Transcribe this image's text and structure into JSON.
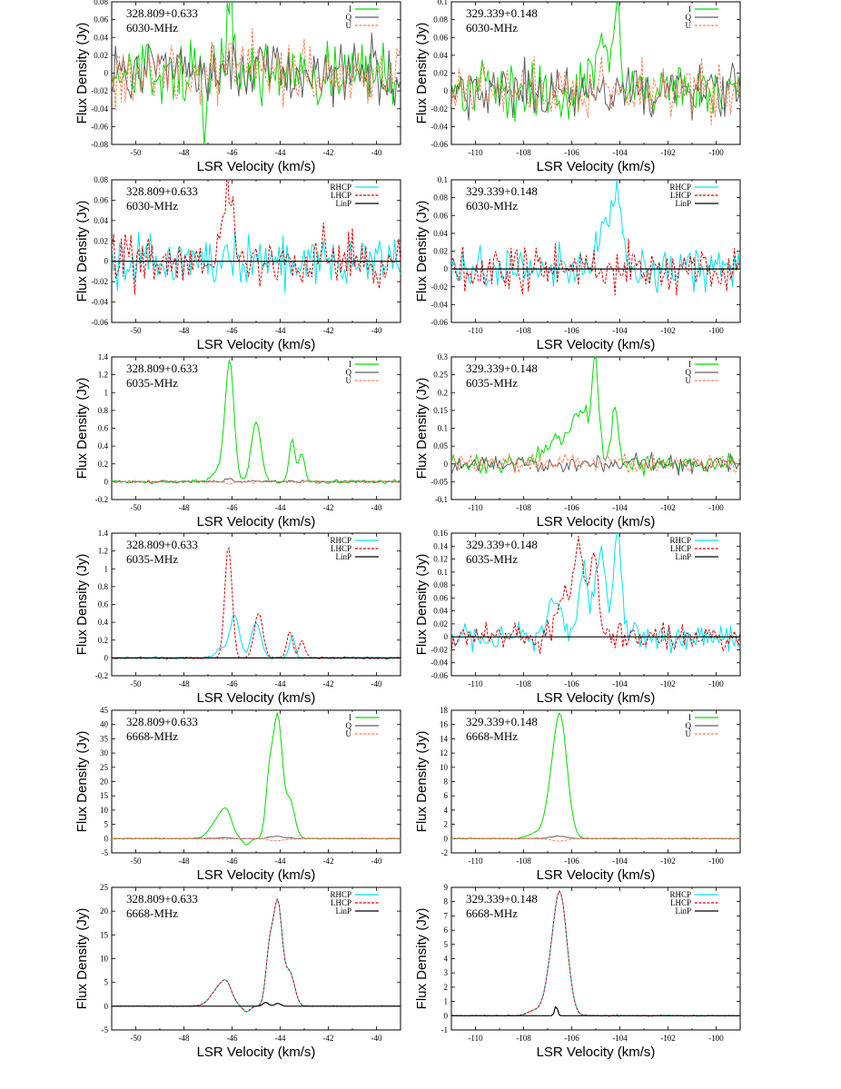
{
  "chart_data": [
    {
      "type": "line",
      "source": "328.809+0.633",
      "freq": "6030-MHz",
      "mode": "IQU",
      "xlim": [
        -51,
        -39
      ],
      "ylim": [
        -0.08,
        0.08
      ],
      "xticks": [
        -50,
        -48,
        -46,
        -44,
        -42,
        -40
      ],
      "yticks": [
        -0.08,
        -0.06,
        -0.04,
        -0.02,
        0,
        0.02,
        0.04,
        0.06,
        0.08
      ],
      "xlabel": "LSR Velocity (km/s)",
      "ylabel": "Flux Density (Jy)",
      "legend": [
        "I",
        "Q",
        "U"
      ],
      "legend_position": "top-right",
      "noise": 0.025,
      "peaks": {
        "I": [
          [
            -46.1,
            0.08,
            0.15
          ]
        ]
      },
      "dips": {
        "I": [
          [
            -47.1,
            -0.07,
            0.08
          ]
        ]
      }
    },
    {
      "type": "line",
      "source": "329.339+0.148",
      "freq": "6030-MHz",
      "mode": "IQU",
      "xlim": [
        -111,
        -99
      ],
      "ylim": [
        -0.06,
        0.1
      ],
      "xticks": [
        -110,
        -108,
        -106,
        -104,
        -102,
        -100
      ],
      "yticks": [
        -0.06,
        -0.04,
        -0.02,
        0,
        0.02,
        0.04,
        0.06,
        0.08,
        0.1
      ],
      "xlabel": "LSR Velocity (km/s)",
      "ylabel": "Flux Density (Jy)",
      "legend": [
        "I",
        "Q",
        "U"
      ],
      "legend_position": "top-right",
      "noise": 0.022,
      "peaks": {
        "I": [
          [
            -104.1,
            0.09,
            0.15
          ],
          [
            -104.7,
            0.06,
            0.25
          ]
        ]
      }
    },
    {
      "type": "line",
      "source": "328.809+0.633",
      "freq": "6030-MHz",
      "mode": "RL",
      "xlim": [
        -51,
        -39
      ],
      "ylim": [
        -0.06,
        0.08
      ],
      "xticks": [
        -50,
        -48,
        -46,
        -44,
        -42,
        -40
      ],
      "yticks": [
        -0.06,
        -0.04,
        -0.02,
        0,
        0.02,
        0.04,
        0.06,
        0.08
      ],
      "xlabel": "LSR Velocity (km/s)",
      "ylabel": "Flux Density (Jy)",
      "legend": [
        "RHCP",
        "LHCP",
        "LinP"
      ],
      "legend_position": "top-right",
      "noise": 0.018,
      "peaks": {
        "LHCP": [
          [
            -46.15,
            0.075,
            0.18
          ]
        ]
      }
    },
    {
      "type": "line",
      "source": "329.339+0.148",
      "freq": "6030-MHz",
      "mode": "RL",
      "xlim": [
        -111,
        -99
      ],
      "ylim": [
        -0.06,
        0.1
      ],
      "xticks": [
        -110,
        -108,
        -106,
        -104,
        -102,
        -100
      ],
      "yticks": [
        -0.06,
        -0.04,
        -0.02,
        0,
        0.02,
        0.04,
        0.06,
        0.08,
        0.1
      ],
      "xlabel": "LSR Velocity (km/s)",
      "ylabel": "Flux Density (Jy)",
      "legend": [
        "RHCP",
        "LHCP",
        "LinP"
      ],
      "legend_position": "top-right",
      "noise": 0.018,
      "peaks": {
        "RHCP": [
          [
            -104.15,
            0.088,
            0.2
          ],
          [
            -104.7,
            0.05,
            0.2
          ]
        ]
      }
    },
    {
      "type": "line",
      "source": "328.809+0.633",
      "freq": "6035-MHz",
      "mode": "IQU",
      "xlim": [
        -51,
        -39
      ],
      "ylim": [
        -0.2,
        1.4
      ],
      "xticks": [
        -50,
        -48,
        -46,
        -44,
        -42,
        -40
      ],
      "yticks": [
        -0.2,
        0,
        0.2,
        0.4,
        0.6,
        0.8,
        1,
        1.2,
        1.4
      ],
      "xlabel": "LSR Velocity (km/s)",
      "ylabel": "Flux Density (Jy)",
      "legend": [
        "I",
        "Q",
        "U"
      ],
      "legend_position": "top-right",
      "noise": 0.015,
      "peaks": {
        "I": [
          [
            -46.1,
            1.33,
            0.18
          ],
          [
            -45.0,
            0.67,
            0.2
          ],
          [
            -43.5,
            0.48,
            0.12
          ],
          [
            -43.1,
            0.33,
            0.12
          ],
          [
            -46.5,
            0.15,
            0.25
          ]
        ]
      }
    },
    {
      "type": "line",
      "source": "329.339+0.148",
      "freq": "6035-MHz",
      "mode": "IQU",
      "xlim": [
        -111,
        -99
      ],
      "ylim": [
        -0.1,
        0.3
      ],
      "xticks": [
        -110,
        -108,
        -106,
        -104,
        -102,
        -100
      ],
      "yticks": [
        -0.1,
        -0.05,
        0,
        0.05,
        0.1,
        0.15,
        0.2,
        0.25,
        0.3
      ],
      "xlabel": "LSR Velocity (km/s)",
      "ylabel": "Flux Density (Jy)",
      "legend": [
        "I",
        "Q",
        "U"
      ],
      "legend_position": "top-right",
      "noise": 0.018,
      "peaks": {
        "I": [
          [
            -105.0,
            0.25,
            0.15
          ],
          [
            -104.2,
            0.16,
            0.15
          ],
          [
            -105.6,
            0.15,
            0.35
          ],
          [
            -106.6,
            0.07,
            0.5
          ]
        ]
      }
    },
    {
      "type": "line",
      "source": "328.809+0.633",
      "freq": "6035-MHz",
      "mode": "RL",
      "xlim": [
        -51,
        -39
      ],
      "ylim": [
        -0.2,
        1.4
      ],
      "xticks": [
        -50,
        -48,
        -46,
        -44,
        -42,
        -40
      ],
      "yticks": [
        -0.2,
        0,
        0.2,
        0.4,
        0.6,
        0.8,
        1,
        1.2,
        1.4
      ],
      "xlabel": "LSR Velocity (km/s)",
      "ylabel": "Flux Density (Jy)",
      "legend": [
        "RHCP",
        "LHCP",
        "LinP"
      ],
      "legend_position": "top-right",
      "noise": 0.01,
      "peaks": {
        "LHCP": [
          [
            -46.15,
            1.26,
            0.15
          ],
          [
            -44.9,
            0.5,
            0.18
          ],
          [
            -43.6,
            0.3,
            0.12
          ],
          [
            -43.1,
            0.2,
            0.12
          ]
        ],
        "RHCP": [
          [
            -45.9,
            0.48,
            0.2
          ],
          [
            -45.0,
            0.4,
            0.2
          ],
          [
            -43.5,
            0.25,
            0.12
          ],
          [
            -46.5,
            0.1,
            0.2
          ]
        ]
      }
    },
    {
      "type": "line",
      "source": "329.339+0.148",
      "freq": "6035-MHz",
      "mode": "RL",
      "xlim": [
        -111,
        -99
      ],
      "ylim": [
        -0.06,
        0.16
      ],
      "xticks": [
        -110,
        -108,
        -106,
        -104,
        -102,
        -100
      ],
      "yticks": [
        -0.06,
        -0.04,
        -0.02,
        0,
        0.02,
        0.04,
        0.06,
        0.08,
        0.1,
        0.12,
        0.14,
        0.16
      ],
      "xlabel": "LSR Velocity (km/s)",
      "ylabel": "Flux Density (Jy)",
      "legend": [
        "RHCP",
        "LHCP",
        "LinP"
      ],
      "legend_position": "top-right",
      "noise": 0.016,
      "peaks": {
        "LHCP": [
          [
            -105.7,
            0.135,
            0.2
          ],
          [
            -105.1,
            0.125,
            0.2
          ],
          [
            -106.3,
            0.06,
            0.3
          ]
        ],
        "RHCP": [
          [
            -104.1,
            0.16,
            0.15
          ],
          [
            -104.8,
            0.14,
            0.2
          ],
          [
            -105.5,
            0.1,
            0.2
          ],
          [
            -106.7,
            0.05,
            0.3
          ]
        ]
      }
    },
    {
      "type": "line",
      "source": "328.809+0.633",
      "freq": "6668-MHz",
      "mode": "IQU",
      "xlim": [
        -51,
        -39
      ],
      "ylim": [
        -5,
        45
      ],
      "xticks": [
        -50,
        -48,
        -46,
        -44,
        -42,
        -40
      ],
      "yticks": [
        -5,
        0,
        5,
        10,
        15,
        20,
        25,
        30,
        35,
        40,
        45
      ],
      "xlabel": "LSR Velocity (km/s)",
      "ylabel": "Flux Density (Jy)",
      "legend": [
        "I",
        "Q",
        "U"
      ],
      "legend_position": "top-right",
      "noise": 0.12,
      "peaks": {
        "I": [
          [
            -44.1,
            42,
            0.18
          ],
          [
            -44.45,
            21,
            0.15
          ],
          [
            -43.6,
            13.5,
            0.2
          ],
          [
            -46.5,
            7.5,
            0.35
          ],
          [
            -46.2,
            5,
            0.2
          ]
        ]
      },
      "dips": {
        "I": [
          [
            -45.4,
            -2.2,
            0.15
          ]
        ]
      }
    },
    {
      "type": "line",
      "source": "329.339+0.148",
      "freq": "6668-MHz",
      "mode": "IQU",
      "xlim": [
        -111,
        -99
      ],
      "ylim": [
        -2,
        18
      ],
      "xticks": [
        -110,
        -108,
        -106,
        -104,
        -102,
        -100
      ],
      "yticks": [
        -2,
        0,
        2,
        4,
        6,
        8,
        10,
        12,
        14,
        16,
        18
      ],
      "xlabel": "LSR Velocity (km/s)",
      "ylabel": "Flux Density (Jy)",
      "legend": [
        "I",
        "Q",
        "U"
      ],
      "legend_position": "top-right",
      "noise": 0.05,
      "peaks": {
        "I": [
          [
            -106.5,
            17.5,
            0.3
          ],
          [
            -107.0,
            1.8,
            0.2
          ],
          [
            -107.5,
            0.8,
            0.3
          ]
        ]
      }
    },
    {
      "type": "line",
      "source": "328.809+0.633",
      "freq": "6668-MHz",
      "mode": "RL",
      "xlim": [
        -51,
        -39
      ],
      "ylim": [
        -5,
        25
      ],
      "xticks": [
        -50,
        -48,
        -46,
        -44,
        -42,
        -40
      ],
      "yticks": [
        -5,
        0,
        5,
        10,
        15,
        20,
        25
      ],
      "xlabel": "LSR Velocity (km/s)",
      "ylabel": "Flux Density (Jy)",
      "legend": [
        "RHCP",
        "LHCP",
        "LinP"
      ],
      "legend_position": "top-right",
      "noise": 0.06,
      "peaks": {
        "LHCP": [
          [
            -44.1,
            21.5,
            0.18
          ],
          [
            -44.45,
            11,
            0.15
          ],
          [
            -43.6,
            7,
            0.2
          ],
          [
            -46.5,
            4,
            0.35
          ],
          [
            -46.2,
            2.5,
            0.2
          ]
        ],
        "RHCP": [
          [
            -44.1,
            21.5,
            0.18
          ],
          [
            -44.45,
            11,
            0.15
          ],
          [
            -43.6,
            7,
            0.2
          ],
          [
            -46.5,
            4,
            0.35
          ],
          [
            -46.2,
            2.5,
            0.2
          ]
        ],
        "LinP": [
          [
            -44.6,
            0.8,
            0.12
          ],
          [
            -44.1,
            0.6,
            0.12
          ]
        ]
      },
      "dips": {
        "LHCP": [
          [
            -45.4,
            -1.2,
            0.15
          ]
        ],
        "RHCP": [
          [
            -45.4,
            -1.2,
            0.15
          ]
        ]
      }
    },
    {
      "type": "line",
      "source": "329.339+0.148",
      "freq": "6668-MHz",
      "mode": "RL",
      "xlim": [
        -111,
        -99
      ],
      "ylim": [
        -1,
        9
      ],
      "xticks": [
        -110,
        -108,
        -106,
        -104,
        -102,
        -100
      ],
      "yticks": [
        -1,
        0,
        1,
        2,
        3,
        4,
        5,
        6,
        7,
        8,
        9
      ],
      "xlabel": "LSR Velocity (km/s)",
      "ylabel": "Flux Density (Jy)",
      "legend": [
        "RHCP",
        "LHCP",
        "LinP"
      ],
      "legend_position": "top-right",
      "noise": 0.03,
      "peaks": {
        "LHCP": [
          [
            -106.5,
            8.7,
            0.3
          ],
          [
            -107.0,
            0.9,
            0.2
          ],
          [
            -107.5,
            0.4,
            0.3
          ]
        ],
        "RHCP": [
          [
            -106.5,
            8.7,
            0.3
          ],
          [
            -107.0,
            0.9,
            0.2
          ],
          [
            -107.5,
            0.4,
            0.3
          ]
        ],
        "LinP": [
          [
            -106.65,
            0.7,
            0.06
          ]
        ]
      }
    }
  ],
  "colors": {
    "I": "#00dd00",
    "Q": "#606060",
    "U": "#ff7f50",
    "RHCP": "#00e5ee",
    "LHCP": "#dd0000",
    "LinP": "#000000"
  }
}
